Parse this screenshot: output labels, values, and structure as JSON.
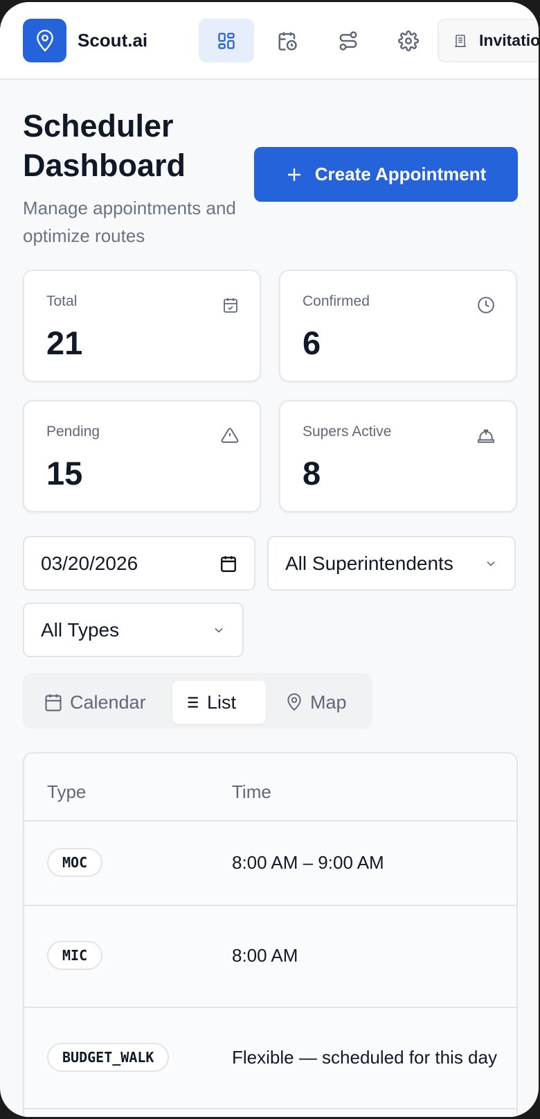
{
  "header": {
    "brand": "Scout.ai",
    "nav": [
      {
        "icon": "dashboard-icon",
        "active": true
      },
      {
        "icon": "calendar-clock-icon"
      },
      {
        "icon": "route-icon"
      },
      {
        "icon": "gear-icon"
      }
    ],
    "invitations_label": "Invitations"
  },
  "page": {
    "title": "Scheduler Dashboard",
    "subtitle": "Manage appointments and optimize routes",
    "create_label": "Create Appointment"
  },
  "stats": [
    {
      "label": "Total",
      "value": "21",
      "icon": "calendar-check-icon"
    },
    {
      "label": "Confirmed",
      "value": "6",
      "icon": "clock-icon"
    },
    {
      "label": "Pending",
      "value": "15",
      "icon": "warning-icon"
    },
    {
      "label": "Supers Active",
      "value": "8",
      "icon": "hard-hat-icon"
    }
  ],
  "filters": {
    "date": "03/20/2026",
    "superintendent": "All Superintendents",
    "type": "All Types"
  },
  "view_tabs": [
    {
      "label": "Calendar"
    },
    {
      "label": "List",
      "active": true
    },
    {
      "label": "Map"
    }
  ],
  "table": {
    "columns": [
      "Type",
      "Time"
    ],
    "rows": [
      {
        "type": "MOC",
        "time": "8:00 AM – 9:00 AM"
      },
      {
        "type": "MIC",
        "time": "8:00 AM"
      },
      {
        "type": "BUDGET_WALK",
        "time": "Flexible — scheduled for this day"
      }
    ]
  },
  "colors": {
    "accent": "#2563db"
  }
}
